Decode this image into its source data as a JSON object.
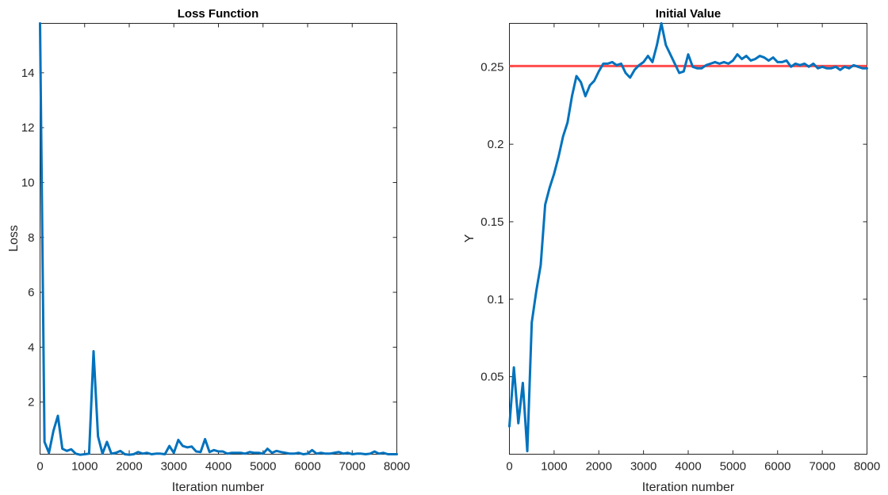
{
  "chart_data": [
    {
      "type": "line",
      "title": "Loss Function",
      "xlabel": "Iteration number",
      "ylabel": "Loss",
      "xlim": [
        0,
        8000
      ],
      "ylim": [
        0.1,
        15.8
      ],
      "xticks": [
        0,
        1000,
        2000,
        3000,
        4000,
        5000,
        6000,
        7000,
        8000
      ],
      "yticks": [
        2,
        4,
        6,
        8,
        10,
        12,
        14
      ],
      "colors": {
        "series": "#0072BD"
      },
      "series": [
        {
          "x": [
            0,
            100,
            200,
            300,
            400,
            500,
            600,
            700,
            800,
            900,
            1000,
            1100,
            1200,
            1300,
            1400,
            1500,
            1600,
            1700,
            1800,
            1900,
            2000,
            2100,
            2200,
            2300,
            2400,
            2500,
            2600,
            2700,
            2800,
            2900,
            3000,
            3100,
            3200,
            3300,
            3400,
            3500,
            3600,
            3700,
            3800,
            3900,
            4000,
            4100,
            4200,
            4300,
            4400,
            4500,
            4600,
            4700,
            4800,
            4900,
            5000,
            5100,
            5200,
            5300,
            5400,
            5500,
            5600,
            5700,
            5800,
            5900,
            6000,
            6100,
            6200,
            6300,
            6400,
            6500,
            6600,
            6700,
            6800,
            6900,
            7000,
            7100,
            7200,
            7300,
            7400,
            7500,
            7600,
            7700,
            7800,
            7900,
            8000
          ],
          "values": [
            15.8,
            0.55,
            0.15,
            0.95,
            1.5,
            0.3,
            0.22,
            0.28,
            0.12,
            0.08,
            0.1,
            0.12,
            3.85,
            0.75,
            0.12,
            0.55,
            0.12,
            0.15,
            0.22,
            0.1,
            0.08,
            0.1,
            0.18,
            0.12,
            0.15,
            0.1,
            0.12,
            0.12,
            0.1,
            0.4,
            0.15,
            0.62,
            0.4,
            0.35,
            0.38,
            0.2,
            0.18,
            0.65,
            0.18,
            0.25,
            0.2,
            0.2,
            0.12,
            0.15,
            0.15,
            0.15,
            0.12,
            0.18,
            0.15,
            0.15,
            0.12,
            0.3,
            0.15,
            0.22,
            0.18,
            0.15,
            0.12,
            0.12,
            0.15,
            0.1,
            0.12,
            0.25,
            0.12,
            0.15,
            0.12,
            0.12,
            0.15,
            0.18,
            0.12,
            0.15,
            0.1,
            0.12,
            0.12,
            0.1,
            0.12,
            0.2,
            0.12,
            0.15,
            0.1,
            0.1,
            0.1
          ]
        }
      ]
    },
    {
      "type": "line",
      "title": "Initial Value",
      "xlabel": "Iteration number",
      "ylabel": "Y",
      "xlim": [
        0,
        8000
      ],
      "ylim": [
        0,
        0.278
      ],
      "xticks": [
        0,
        1000,
        2000,
        3000,
        4000,
        5000,
        6000,
        7000,
        8000
      ],
      "yticks": [
        0.05,
        0.1,
        0.15,
        0.2,
        0.25
      ],
      "ytick_labels": [
        "0.05",
        "0.1",
        "0.15",
        "0.2",
        "0.25"
      ],
      "colors": {
        "series": "#0072BD",
        "reference": "#FF4D4D"
      },
      "reference_line": 0.2505,
      "series": [
        {
          "x": [
            0,
            100,
            200,
            300,
            400,
            500,
            600,
            700,
            800,
            900,
            1000,
            1100,
            1200,
            1300,
            1400,
            1500,
            1600,
            1700,
            1800,
            1900,
            2000,
            2100,
            2200,
            2300,
            2400,
            2500,
            2600,
            2700,
            2800,
            2900,
            3000,
            3100,
            3200,
            3300,
            3400,
            3500,
            3600,
            3700,
            3800,
            3900,
            4000,
            4100,
            4200,
            4300,
            4400,
            4500,
            4600,
            4700,
            4800,
            4900,
            5000,
            5100,
            5200,
            5300,
            5400,
            5500,
            5600,
            5700,
            5800,
            5900,
            6000,
            6100,
            6200,
            6300,
            6400,
            6500,
            6600,
            6700,
            6800,
            6900,
            7000,
            7100,
            7200,
            7300,
            7400,
            7500,
            7600,
            7700,
            7800,
            7900,
            8000
          ],
          "values": [
            0.018,
            0.056,
            0.02,
            0.046,
            0.002,
            0.085,
            0.105,
            0.122,
            0.161,
            0.172,
            0.181,
            0.192,
            0.205,
            0.214,
            0.231,
            0.244,
            0.24,
            0.231,
            0.238,
            0.241,
            0.247,
            0.252,
            0.252,
            0.253,
            0.251,
            0.252,
            0.246,
            0.243,
            0.248,
            0.251,
            0.253,
            0.257,
            0.253,
            0.264,
            0.278,
            0.264,
            0.258,
            0.252,
            0.246,
            0.247,
            0.258,
            0.25,
            0.249,
            0.249,
            0.251,
            0.252,
            0.253,
            0.252,
            0.253,
            0.252,
            0.254,
            0.258,
            0.255,
            0.257,
            0.254,
            0.255,
            0.257,
            0.256,
            0.254,
            0.256,
            0.253,
            0.253,
            0.254,
            0.25,
            0.252,
            0.251,
            0.252,
            0.25,
            0.252,
            0.249,
            0.25,
            0.249,
            0.249,
            0.25,
            0.248,
            0.25,
            0.249,
            0.251,
            0.25,
            0.249,
            0.249
          ]
        }
      ]
    }
  ]
}
